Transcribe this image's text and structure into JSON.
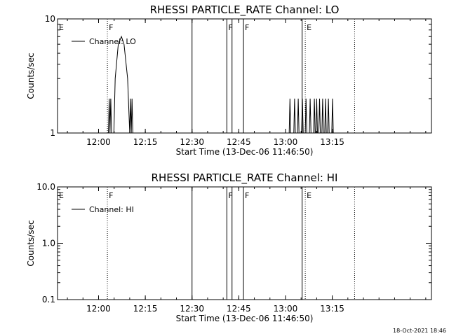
{
  "chart_data": [
    {
      "type": "line",
      "title": "RHESSI PARTICLE_RATE Channel: LO",
      "xlabel": "Start Time (13-Dec-06 11:46:50)",
      "ylabel": "Counts/sec",
      "y_scale": "log",
      "ylim": [
        1,
        10
      ],
      "y_ticks": [
        "1",
        "10"
      ],
      "x_range": [
        "11:46:50",
        "13:46:50"
      ],
      "x_ticks": [
        "12:00",
        "12:15",
        "12:30",
        "12:45",
        "13:00",
        "13:15"
      ],
      "legend": {
        "placement": "top-left",
        "entries": [
          "Channel: LO"
        ]
      },
      "series": [
        {
          "name": "Channel: LO",
          "points": [
            [
              "12:03:10",
              1
            ],
            [
              "12:03:25",
              2
            ],
            [
              "12:03:40",
              1
            ],
            [
              "12:03:55",
              2
            ],
            [
              "12:04:10",
              1
            ],
            [
              "12:04:55",
              1
            ],
            [
              "12:05:20",
              3
            ],
            [
              "12:06:20",
              6
            ],
            [
              "12:07:20",
              7
            ],
            [
              "12:08:10",
              6
            ],
            [
              "12:09:20",
              3
            ],
            [
              "12:10:00",
              1
            ],
            [
              "12:10:15",
              2
            ],
            [
              "12:10:30",
              1
            ],
            [
              "12:10:45",
              2
            ],
            [
              "12:11:00",
              1
            ],
            [
              "13:01:10",
              1
            ],
            [
              "13:01:25",
              2
            ],
            [
              "13:01:40",
              1
            ],
            [
              "13:02:40",
              1
            ],
            [
              "13:02:55",
              2
            ],
            [
              "13:03:10",
              1
            ],
            [
              "13:03:50",
              1
            ],
            [
              "13:04:05",
              2
            ],
            [
              "13:04:20",
              1
            ],
            [
              "13:05:10",
              1
            ],
            [
              "13:05:25",
              2
            ],
            [
              "13:05:40",
              1
            ],
            [
              "13:06:20",
              1
            ],
            [
              "13:06:35",
              2
            ],
            [
              "13:06:50",
              1
            ],
            [
              "13:07:40",
              1
            ],
            [
              "13:07:55",
              2
            ],
            [
              "13:08:10",
              1
            ],
            [
              "13:09:00",
              1
            ],
            [
              "13:09:15",
              2
            ],
            [
              "13:09:30",
              1
            ],
            [
              "13:09:45",
              1
            ],
            [
              "13:10:00",
              2
            ],
            [
              "13:10:15",
              1
            ],
            [
              "13:10:40",
              1
            ],
            [
              "13:10:55",
              2
            ],
            [
              "13:11:10",
              1
            ],
            [
              "13:11:40",
              1
            ],
            [
              "13:11:55",
              2
            ],
            [
              "13:12:10",
              1
            ],
            [
              "13:12:35",
              1
            ],
            [
              "13:12:50",
              2
            ],
            [
              "13:13:05",
              1
            ],
            [
              "13:13:30",
              1
            ],
            [
              "13:13:45",
              2
            ],
            [
              "13:14:00",
              1
            ],
            [
              "13:14:50",
              1
            ],
            [
              "13:15:05",
              2
            ],
            [
              "13:15:20",
              1
            ]
          ]
        }
      ],
      "markers": [
        {
          "time": "11:46:50",
          "label": "E",
          "style": "solid"
        },
        {
          "time": "12:02:50",
          "label": "F",
          "style": "dotted"
        },
        {
          "time": "12:30:00",
          "label": "",
          "style": "solid"
        },
        {
          "time": "12:41:10",
          "label": "F",
          "style": "solid"
        },
        {
          "time": "12:42:50",
          "label": "",
          "style": "solid"
        },
        {
          "time": "12:46:30",
          "label": "F",
          "style": "solid"
        },
        {
          "time": "13:05:20",
          "label": "",
          "style": "solid"
        },
        {
          "time": "13:06:20",
          "label": "E",
          "style": "dotted"
        },
        {
          "time": "13:22:10",
          "label": "",
          "style": "dotted"
        }
      ]
    },
    {
      "type": "line",
      "title": "RHESSI PARTICLE_RATE Channel: HI",
      "xlabel": "Start Time (13-Dec-06 11:46:50)",
      "ylabel": "Counts/sec",
      "y_scale": "log",
      "ylim": [
        0.1,
        10
      ],
      "y_ticks": [
        "0.1",
        "1.0",
        "10.0"
      ],
      "x_range": [
        "11:46:50",
        "13:46:50"
      ],
      "x_ticks": [
        "12:00",
        "12:15",
        "12:30",
        "12:45",
        "13:00",
        "13:15"
      ],
      "legend": {
        "placement": "top-left",
        "entries": [
          "Channel: HI"
        ]
      },
      "series": [
        {
          "name": "Channel: HI",
          "points": []
        }
      ],
      "markers": [
        {
          "time": "11:46:50",
          "label": "E",
          "style": "solid"
        },
        {
          "time": "12:02:50",
          "label": "F",
          "style": "dotted"
        },
        {
          "time": "12:30:00",
          "label": "",
          "style": "solid"
        },
        {
          "time": "12:41:10",
          "label": "F",
          "style": "solid"
        },
        {
          "time": "12:42:50",
          "label": "",
          "style": "solid"
        },
        {
          "time": "12:46:30",
          "label": "F",
          "style": "solid"
        },
        {
          "time": "13:05:20",
          "label": "",
          "style": "solid"
        },
        {
          "time": "13:06:20",
          "label": "E",
          "style": "dotted"
        },
        {
          "time": "13:22:10",
          "label": "",
          "style": "dotted"
        }
      ]
    }
  ],
  "footer": {
    "timestamp": "18-Oct-2021 18:46"
  }
}
